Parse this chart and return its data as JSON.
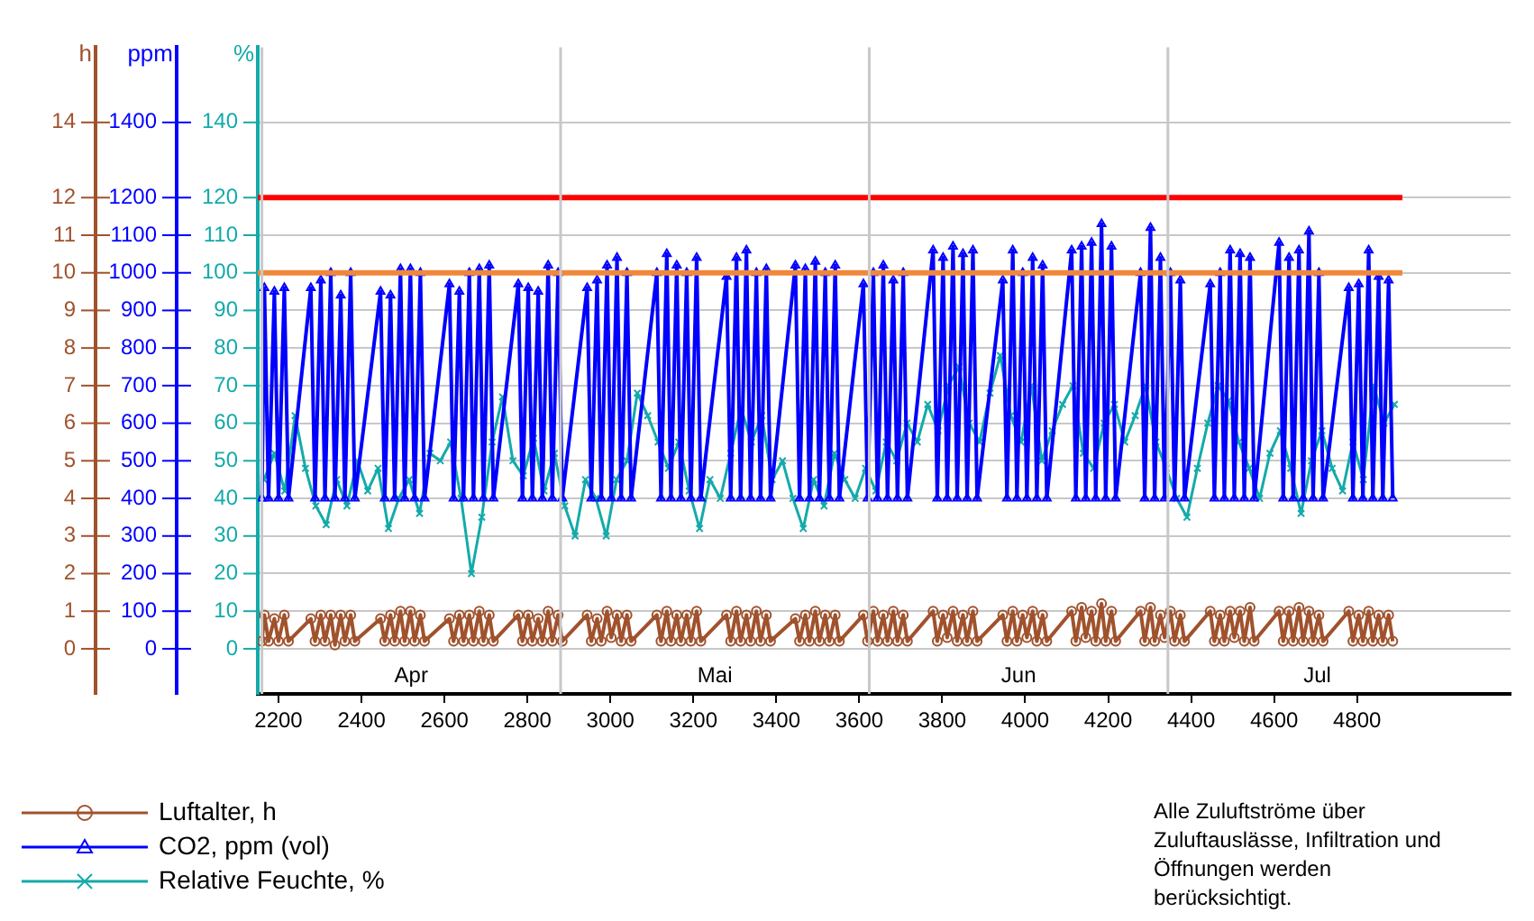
{
  "chart_data": {
    "type": "line",
    "ylabel": "h",
    "y2label": "ppm",
    "y3label": "%",
    "xlim": [
      2150,
      5170
    ],
    "xticks": [
      2200,
      2400,
      2600,
      2800,
      3000,
      3200,
      3400,
      3600,
      3800,
      4000,
      4200,
      4400,
      4600,
      4800
    ],
    "ylim": [
      -1.2,
      16
    ],
    "yticks": [
      0,
      1,
      2,
      3,
      4,
      5,
      6,
      7,
      8,
      9,
      10,
      11,
      12,
      14
    ],
    "y2lim": [
      -120,
      1600
    ],
    "y2ticks": [
      0,
      100,
      200,
      300,
      400,
      500,
      600,
      700,
      800,
      900,
      1000,
      1100,
      1200,
      1400
    ],
    "y3lim": [
      -12,
      160
    ],
    "y3ticks": [
      0,
      10,
      20,
      30,
      40,
      50,
      60,
      70,
      80,
      90,
      100,
      110,
      120,
      140
    ],
    "grid": "y",
    "legend": "bottom left",
    "ref_lines": [
      {
        "axis": "y2",
        "value": 1200,
        "color": "#ff0000"
      },
      {
        "axis": "y2",
        "value": 1000,
        "color": "#f0883c"
      },
      {
        "axis": "x",
        "value": 2160,
        "color": "#c8c8c8"
      },
      {
        "axis": "x",
        "value": 2880,
        "color": "#c8c8c8"
      },
      {
        "axis": "x",
        "value": 3624,
        "color": "#c8c8c8"
      },
      {
        "axis": "x",
        "value": 4344,
        "color": "#c8c8c8"
      }
    ],
    "annotations": [
      "Alle Zuluftströme über Zuluftauslässe, Infiltration und Öffnungen werden berücksichtigt.",
      "Apr",
      "Mai",
      "Jun",
      "Jul"
    ],
    "series": [
      {
        "name": "Luftalter, h",
        "color": "#a0522d",
        "marker": "circle",
        "x": [
          2160,
          2166,
          2176,
          2190,
          2200,
          2214,
          2224,
          2278,
          2288,
          2302,
          2312,
          2326,
          2336,
          2350,
          2360,
          2374,
          2384,
          2446,
          2456,
          2470,
          2480,
          2494,
          2504,
          2518,
          2528,
          2542,
          2552,
          2612,
          2622,
          2636,
          2646,
          2660,
          2670,
          2684,
          2694,
          2708,
          2718,
          2778,
          2788,
          2802,
          2812,
          2826,
          2836,
          2850,
          2860,
          2874,
          2884,
          2944,
          2954,
          2968,
          2978,
          2992,
          3002,
          3016,
          3026,
          3040,
          3050,
          3112,
          3122,
          3136,
          3146,
          3160,
          3170,
          3184,
          3194,
          3208,
          3218,
          3280,
          3290,
          3304,
          3314,
          3328,
          3338,
          3352,
          3362,
          3376,
          3386,
          3446,
          3456,
          3470,
          3480,
          3494,
          3504,
          3518,
          3528,
          3542,
          3552,
          3610,
          3620,
          3634,
          3644,
          3658,
          3668,
          3682,
          3692,
          3706,
          3716,
          3778,
          3788,
          3802,
          3812,
          3826,
          3836,
          3850,
          3860,
          3874,
          3884,
          3946,
          3956,
          3970,
          3980,
          3994,
          4004,
          4018,
          4028,
          4042,
          4052,
          4112,
          4122,
          4136,
          4146,
          4160,
          4170,
          4184,
          4194,
          4208,
          4218,
          4278,
          4288,
          4302,
          4312,
          4326,
          4336,
          4350,
          4360,
          4374,
          4384,
          4446,
          4456,
          4470,
          4480,
          4494,
          4504,
          4518,
          4528,
          4542,
          4552,
          4612,
          4622,
          4636,
          4646,
          4660,
          4670,
          4684,
          4694,
          4708,
          4718,
          4780,
          4790,
          4804,
          4814,
          4828,
          4838,
          4852,
          4862,
          4876,
          4886
        ],
        "values": [
          0.2,
          0.9,
          0.2,
          0.8,
          0.2,
          0.9,
          0.2,
          0.8,
          0.2,
          0.9,
          0.2,
          0.9,
          0.1,
          0.9,
          0.2,
          0.9,
          0.2,
          0.8,
          0.2,
          0.9,
          0.2,
          1.0,
          0.2,
          1.0,
          0.2,
          0.9,
          0.2,
          0.8,
          0.2,
          0.9,
          0.2,
          0.9,
          0.2,
          1.0,
          0.2,
          0.9,
          0.2,
          0.9,
          0.2,
          0.9,
          0.2,
          0.8,
          0.2,
          1.0,
          0.2,
          0.9,
          0.2,
          0.9,
          0.2,
          0.8,
          0.2,
          1.0,
          0.3,
          0.9,
          0.2,
          0.9,
          0.2,
          0.9,
          0.2,
          1.0,
          0.2,
          0.9,
          0.2,
          0.9,
          0.2,
          1.0,
          0.2,
          0.9,
          0.2,
          1.0,
          0.2,
          0.9,
          0.2,
          1.0,
          0.2,
          0.9,
          0.2,
          0.8,
          0.2,
          0.9,
          0.2,
          1.0,
          0.2,
          0.9,
          0.2,
          0.9,
          0.2,
          0.9,
          0.2,
          1.0,
          0.2,
          0.9,
          0.2,
          1.0,
          0.2,
          0.9,
          0.2,
          1.0,
          0.2,
          0.9,
          0.3,
          1.0,
          0.2,
          0.9,
          0.2,
          1.0,
          0.2,
          0.9,
          0.2,
          1.0,
          0.2,
          0.9,
          0.3,
          1.0,
          0.2,
          0.9,
          0.2,
          1.0,
          0.2,
          1.1,
          0.3,
          1.0,
          0.2,
          1.2,
          0.2,
          1.0,
          0.2,
          1.0,
          0.2,
          1.1,
          0.2,
          0.9,
          0.3,
          1.0,
          0.2,
          0.9,
          0.2,
          1.0,
          0.2,
          0.9,
          0.2,
          1.0,
          0.3,
          1.0,
          0.2,
          1.1,
          0.2,
          1.0,
          0.2,
          1.0,
          0.2,
          1.1,
          0.2,
          1.0,
          0.2,
          0.9,
          0.2,
          1.0,
          0.2,
          0.9,
          0.2,
          1.0,
          0.2,
          0.9,
          0.2,
          0.9,
          0.2
        ]
      },
      {
        "name": "CO2, ppm (vol)",
        "color": "#0000ff",
        "marker": "triangle",
        "axis": "y2",
        "x": [
          2160,
          2166,
          2176,
          2190,
          2200,
          2214,
          2224,
          2278,
          2288,
          2302,
          2312,
          2326,
          2336,
          2350,
          2360,
          2374,
          2384,
          2446,
          2456,
          2470,
          2480,
          2494,
          2504,
          2518,
          2528,
          2542,
          2552,
          2612,
          2622,
          2636,
          2646,
          2660,
          2670,
          2684,
          2694,
          2708,
          2718,
          2778,
          2788,
          2802,
          2812,
          2826,
          2836,
          2850,
          2860,
          2874,
          2884,
          2944,
          2954,
          2968,
          2978,
          2992,
          3002,
          3016,
          3026,
          3040,
          3050,
          3112,
          3122,
          3136,
          3146,
          3160,
          3170,
          3184,
          3194,
          3208,
          3218,
          3280,
          3290,
          3304,
          3314,
          3328,
          3338,
          3352,
          3362,
          3376,
          3386,
          3446,
          3456,
          3470,
          3480,
          3494,
          3504,
          3518,
          3528,
          3542,
          3552,
          3610,
          3620,
          3634,
          3644,
          3658,
          3668,
          3682,
          3692,
          3706,
          3716,
          3778,
          3788,
          3802,
          3812,
          3826,
          3836,
          3850,
          3860,
          3874,
          3884,
          3946,
          3956,
          3970,
          3980,
          3994,
          4004,
          4018,
          4028,
          4042,
          4052,
          4112,
          4122,
          4136,
          4146,
          4160,
          4170,
          4184,
          4194,
          4208,
          4218,
          4278,
          4288,
          4302,
          4312,
          4326,
          4336,
          4350,
          4360,
          4374,
          4384,
          4446,
          4456,
          4470,
          4480,
          4494,
          4504,
          4518,
          4528,
          4542,
          4552,
          4612,
          4622,
          4636,
          4646,
          4660,
          4670,
          4684,
          4694,
          4708,
          4718,
          4780,
          4790,
          4804,
          4814,
          4828,
          4838,
          4852,
          4862,
          4876,
          4886
        ],
        "values": [
          400,
          960,
          400,
          950,
          400,
          960,
          400,
          960,
          400,
          980,
          400,
          1000,
          400,
          940,
          400,
          1000,
          400,
          950,
          400,
          940,
          400,
          1010,
          400,
          1010,
          400,
          1000,
          400,
          970,
          400,
          950,
          400,
          1000,
          400,
          1010,
          400,
          1020,
          400,
          970,
          400,
          960,
          400,
          950,
          400,
          1020,
          400,
          1000,
          400,
          960,
          400,
          980,
          400,
          1020,
          400,
          1040,
          400,
          1000,
          400,
          1000,
          400,
          1050,
          400,
          1020,
          400,
          1000,
          400,
          1040,
          400,
          990,
          400,
          1040,
          400,
          1060,
          400,
          1000,
          400,
          1010,
          400,
          1020,
          400,
          1010,
          400,
          1030,
          400,
          1000,
          400,
          1020,
          400,
          970,
          400,
          1000,
          400,
          1020,
          400,
          980,
          400,
          1000,
          400,
          1060,
          400,
          1040,
          400,
          1070,
          400,
          1050,
          400,
          1060,
          400,
          980,
          400,
          1060,
          400,
          1000,
          400,
          1040,
          400,
          1020,
          400,
          1060,
          400,
          1070,
          400,
          1080,
          400,
          1130,
          400,
          1070,
          400,
          1000,
          400,
          1120,
          400,
          1040,
          400,
          1000,
          400,
          980,
          400,
          970,
          400,
          1000,
          400,
          1060,
          400,
          1050,
          400,
          1040,
          400,
          1080,
          400,
          1040,
          400,
          1060,
          400,
          1110,
          400,
          1000,
          400,
          960,
          400,
          970,
          400,
          1060,
          400,
          990,
          400,
          980,
          400
        ]
      },
      {
        "name": "Relative Feuchte, %",
        "color": "#14aaaa",
        "marker": "cross",
        "axis": "y3",
        "x": [
          2165,
          2190,
          2215,
          2240,
          2265,
          2290,
          2315,
          2340,
          2365,
          2390,
          2415,
          2440,
          2465,
          2490,
          2515,
          2540,
          2565,
          2590,
          2615,
          2640,
          2665,
          2690,
          2715,
          2740,
          2765,
          2790,
          2815,
          2840,
          2865,
          2890,
          2915,
          2940,
          2965,
          2990,
          3015,
          3040,
          3065,
          3090,
          3115,
          3140,
          3165,
          3190,
          3215,
          3240,
          3265,
          3290,
          3315,
          3340,
          3365,
          3390,
          3415,
          3440,
          3465,
          3490,
          3515,
          3540,
          3565,
          3590,
          3615,
          3640,
          3665,
          3690,
          3715,
          3740,
          3765,
          3790,
          3815,
          3840,
          3865,
          3890,
          3915,
          3940,
          3965,
          3990,
          4015,
          4040,
          4065,
          4090,
          4115,
          4140,
          4165,
          4190,
          4215,
          4240,
          4265,
          4290,
          4315,
          4340,
          4365,
          4390,
          4415,
          4440,
          4465,
          4490,
          4515,
          4540,
          4565,
          4590,
          4615,
          4640,
          4665,
          4690,
          4715,
          4740,
          4765,
          4790,
          4815,
          4840,
          4865,
          4890
        ],
        "values": [
          45,
          52,
          42,
          62,
          48,
          38,
          33,
          45,
          38,
          50,
          42,
          48,
          32,
          40,
          45,
          36,
          52,
          50,
          55,
          40,
          20,
          35,
          55,
          67,
          50,
          46,
          56,
          42,
          52,
          38,
          30,
          45,
          40,
          30,
          45,
          50,
          68,
          62,
          55,
          48,
          55,
          42,
          32,
          45,
          40,
          52,
          64,
          55,
          62,
          45,
          50,
          40,
          32,
          45,
          38,
          52,
          45,
          40,
          48,
          42,
          55,
          50,
          60,
          55,
          65,
          58,
          70,
          75,
          60,
          55,
          68,
          78,
          62,
          55,
          70,
          50,
          58,
          65,
          70,
          52,
          48,
          60,
          65,
          55,
          62,
          70,
          55,
          48,
          40,
          35,
          48,
          60,
          70,
          66,
          55,
          48,
          40,
          52,
          58,
          48,
          36,
          50,
          58,
          48,
          42,
          55,
          45,
          70,
          60,
          65
        ]
      }
    ]
  }
}
